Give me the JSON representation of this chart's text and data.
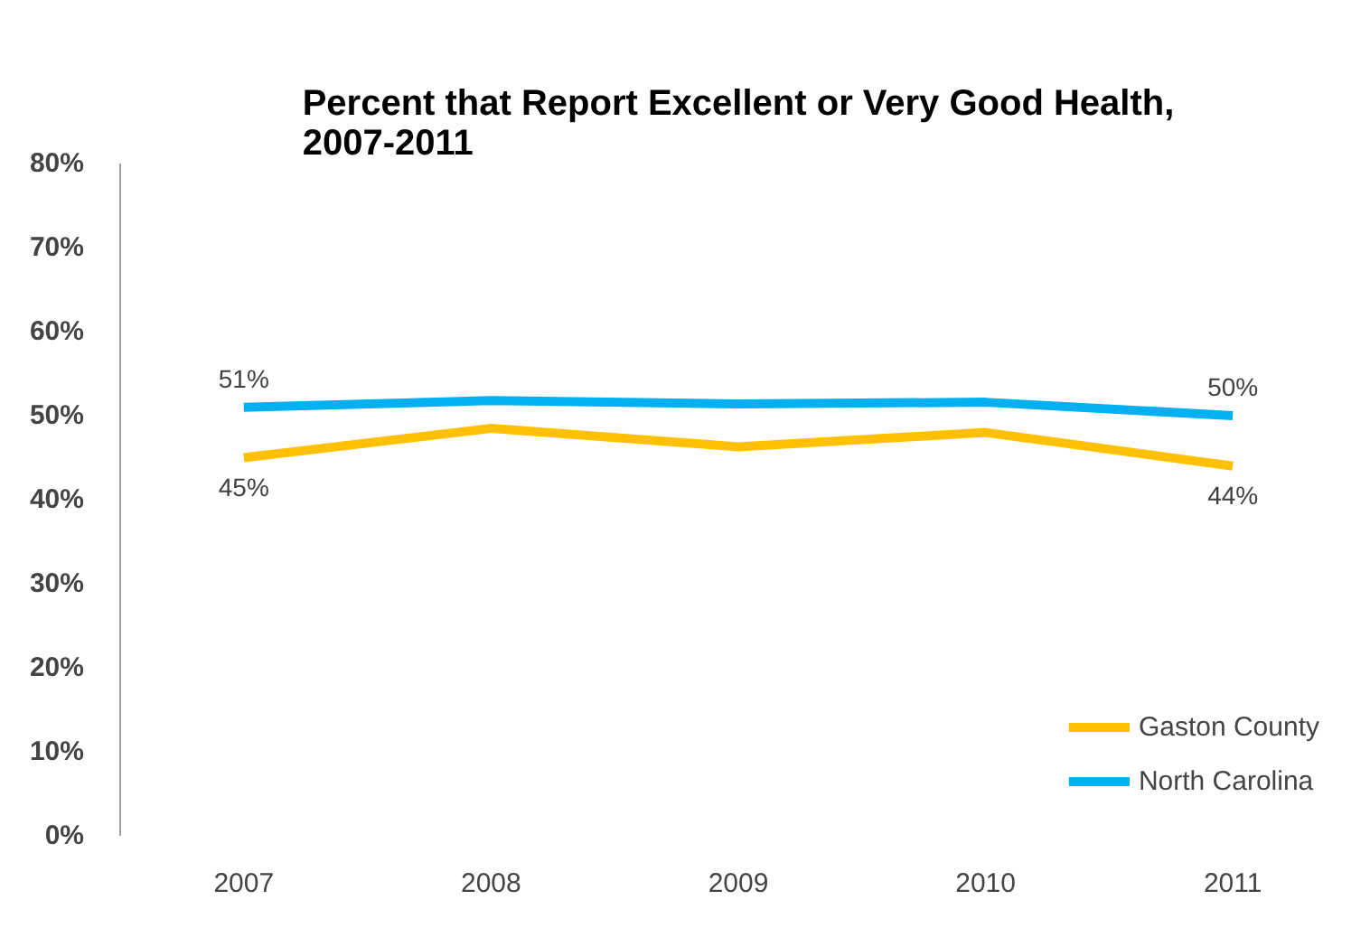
{
  "chart_data": {
    "type": "line",
    "title": "Percent that Report Excellent or Very Good Health, 2007-2011",
    "categories": [
      "2007",
      "2008",
      "2009",
      "2010",
      "2011"
    ],
    "series": [
      {
        "name": "Gaston County",
        "color": "#ffc000",
        "values": [
          45,
          48.5,
          46.3,
          48,
          44
        ],
        "value_labels": [
          "45%",
          null,
          null,
          null,
          "44%"
        ]
      },
      {
        "name": "North Carolina",
        "color": "#00b0f0",
        "values": [
          51,
          51.8,
          51.4,
          51.6,
          50
        ],
        "value_labels": [
          "51%",
          null,
          null,
          null,
          "50%"
        ]
      }
    ],
    "ylim": [
      0,
      80
    ],
    "yticks": [
      {
        "value": 0,
        "label": "0%"
      },
      {
        "value": 10,
        "label": "10%"
      },
      {
        "value": 20,
        "label": "20%"
      },
      {
        "value": 30,
        "label": "30%"
      },
      {
        "value": 40,
        "label": "40%"
      },
      {
        "value": 50,
        "label": "50%"
      },
      {
        "value": 60,
        "label": "60%"
      },
      {
        "value": 70,
        "label": "70%"
      },
      {
        "value": 80,
        "label": "80%"
      }
    ],
    "grid": false,
    "legend": "bottom right",
    "marker": "none",
    "line_style": "solid"
  }
}
